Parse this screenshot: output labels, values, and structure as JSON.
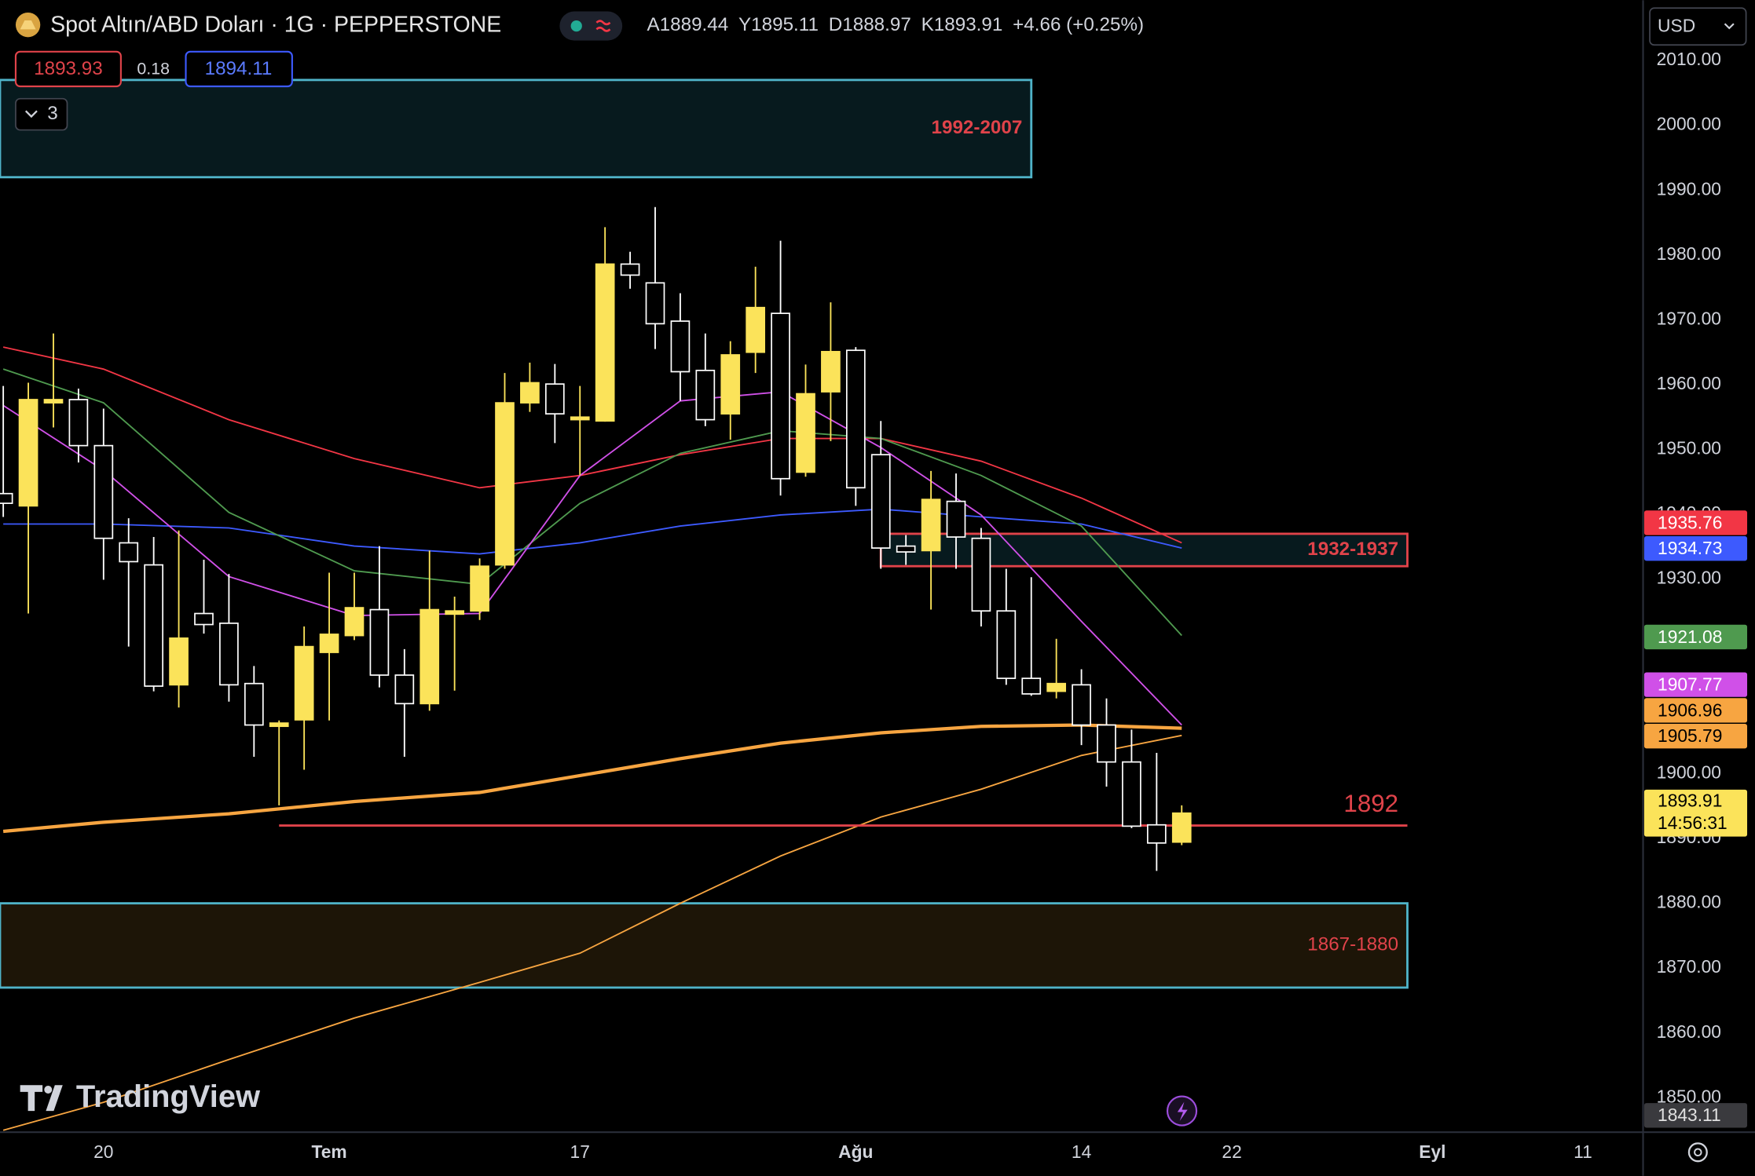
{
  "header": {
    "title": "Spot Altın/ABD Doları · 1G · PEPPERSTONE",
    "ohlc": [
      {
        "label": "A",
        "value": "1889.44"
      },
      {
        "label": "Y",
        "value": "1895.11"
      },
      {
        "label": "D",
        "value": "1888.97"
      },
      {
        "label": "K",
        "value": "1893.91"
      }
    ],
    "change": "+4.66 (+0.25%)",
    "sell": "1893.93",
    "spread": "0.18",
    "buy": "1894.11",
    "indicators_count": "3",
    "currency": "USD",
    "logo": "TradingView"
  },
  "chart_data": {
    "type": "candlestick",
    "x": [
      0,
      1,
      2,
      3,
      4,
      5,
      6,
      7,
      8,
      9,
      10,
      11,
      12,
      13,
      14,
      15,
      16,
      17,
      18,
      19,
      20,
      21,
      22,
      23,
      24,
      25,
      26,
      27,
      28,
      29,
      30,
      31,
      32,
      33,
      34,
      35,
      36,
      37,
      38,
      39,
      40,
      41,
      42,
      43,
      44,
      45,
      46,
      47
    ],
    "open": [
      1943.2,
      1941.3,
      1957.2,
      1957.7,
      1950.6,
      1935.6,
      1932.2,
      1913.7,
      1924.7,
      1923.2,
      1913.9,
      1907.3,
      1908.3,
      1918.7,
      1921.3,
      1925.3,
      1915.2,
      1910.8,
      1924.6,
      1925.1,
      1932.2,
      1957.2,
      1960.1,
      1954.6,
      1954.4,
      1978.6,
      1975.7,
      1969.8,
      1962.2,
      1955.5,
      1965.0,
      1971.0,
      1946.5,
      1958.9,
      1965.3,
      1949.2,
      1935.1,
      1934.4,
      1942.0,
      1936.3,
      1925.1,
      1914.7,
      1912.7,
      1913.7,
      1907.5,
      1901.8,
      1892.1,
      1889.44
    ],
    "high": [
      1959.8,
      1960.3,
      1967.9,
      1959.4,
      1956.3,
      1939.4,
      1936.5,
      1937.5,
      1933.0,
      1930.8,
      1916.6,
      1908.2,
      1922.7,
      1931.0,
      1931.0,
      1935.1,
      1919.2,
      1934.4,
      1927.3,
      1933.2,
      1961.8,
      1963.4,
      1963.2,
      1959.8,
      1984.3,
      1980.5,
      1987.4,
      1974.1,
      1967.9,
      1966.7,
      1978.2,
      1982.2,
      1963.1,
      1972.7,
      1965.8,
      1954.4,
      1936.8,
      1946.7,
      1946.3,
      1937.9,
      1931.6,
      1930.3,
      1920.8,
      1916.1,
      1911.6,
      1906.8,
      1903.2,
      1895.11
    ],
    "low": [
      1939.6,
      1924.7,
      1953.4,
      1948.0,
      1929.9,
      1919.6,
      1912.7,
      1910.2,
      1921.6,
      1911.1,
      1902.6,
      1895.1,
      1900.6,
      1908.2,
      1920.6,
      1913.3,
      1902.6,
      1909.7,
      1912.8,
      1923.7,
      1931.6,
      1955.8,
      1951.0,
      1946.0,
      1954.3,
      1974.8,
      1965.5,
      1957.5,
      1953.6,
      1951.5,
      1961.8,
      1942.9,
      1945.8,
      1951.3,
      1941.3,
      1931.6,
      1932.2,
      1925.3,
      1931.6,
      1922.7,
      1913.7,
      1912.0,
      1911.6,
      1904.4,
      1898.0,
      1891.6,
      1885.0,
      1888.97
    ],
    "close": [
      1941.7,
      1957.7,
      1957.7,
      1950.6,
      1936.3,
      1932.7,
      1913.5,
      1920.9,
      1923.0,
      1913.7,
      1907.5,
      1907.8,
      1919.6,
      1921.5,
      1925.6,
      1915.2,
      1910.8,
      1925.3,
      1925.1,
      1932.0,
      1957.2,
      1960.3,
      1955.5,
      1955.0,
      1978.6,
      1976.9,
      1969.4,
      1962.0,
      1954.6,
      1964.6,
      1971.9,
      1945.5,
      1958.6,
      1965.1,
      1944.1,
      1934.8,
      1934.2,
      1942.3,
      1936.5,
      1925.1,
      1914.7,
      1912.3,
      1913.9,
      1907.5,
      1901.8,
      1891.9,
      1889.3,
      1893.91
    ],
    "up_color": "#fbe35a",
    "down_color": "#ffffff",
    "overlays": [
      {
        "color": "#f23645",
        "width": 1.3,
        "x": [
          0,
          4,
          9,
          14,
          19,
          23,
          27,
          31,
          35,
          39,
          43,
          47
        ],
        "values": [
          1965.8,
          1962.4,
          1954.6,
          1948.6,
          1944.1,
          1946.0,
          1949.2,
          1951.7,
          1951.7,
          1948.2,
          1942.5,
          1935.6
        ]
      },
      {
        "color": "#3d5afe",
        "width": 1.3,
        "x": [
          0,
          4,
          9,
          14,
          19,
          23,
          27,
          31,
          35,
          39,
          43,
          47
        ],
        "values": [
          1938.5,
          1938.5,
          1937.9,
          1935.1,
          1933.9,
          1935.6,
          1938.2,
          1939.9,
          1940.8,
          1939.6,
          1938.5,
          1934.8
        ]
      },
      {
        "color": "#4f9a4f",
        "width": 1.3,
        "x": [
          0,
          4,
          9,
          14,
          19,
          23,
          27,
          31,
          35,
          39,
          43,
          47
        ],
        "values": [
          1962.4,
          1957.2,
          1940.3,
          1931.3,
          1929.2,
          1941.7,
          1949.4,
          1952.9,
          1951.7,
          1946.0,
          1938.2,
          1921.3
        ]
      },
      {
        "color": "#d050e8",
        "width": 1.3,
        "x": [
          0,
          4,
          9,
          14,
          19,
          23,
          27,
          31,
          35,
          39,
          43,
          47
        ],
        "values": [
          1956.8,
          1946.8,
          1930.4,
          1924.4,
          1924.7,
          1946.0,
          1957.5,
          1958.9,
          1950.3,
          1939.9,
          1923.5,
          1907.5
        ]
      },
      {
        "color": "#f7a541",
        "width": 3,
        "x": [
          0,
          4,
          9,
          14,
          19,
          23,
          27,
          31,
          35,
          39,
          43,
          47
        ],
        "values": [
          1891.1,
          1892.5,
          1893.8,
          1895.7,
          1897.1,
          1899.7,
          1902.3,
          1904.7,
          1906.3,
          1907.3,
          1907.5,
          1907.0
        ]
      },
      {
        "color": "#f7a541",
        "width": 1.3,
        "x": [
          0,
          4,
          9,
          14,
          19,
          23,
          27,
          31,
          35,
          39,
          43,
          47
        ],
        "values": [
          1845.0,
          1849.3,
          1855.9,
          1862.3,
          1867.8,
          1872.3,
          1880.0,
          1887.3,
          1893.3,
          1897.6,
          1902.8,
          1905.9
        ]
      }
    ],
    "zones": [
      {
        "label": "1992-2007",
        "low": 1992,
        "high": 2007,
        "x0": -0.13,
        "x1": 41,
        "border": "#4fb3c8",
        "fill": "#071a1e",
        "label_color": "#e0434a",
        "bold": true
      },
      {
        "label": "1932-1937",
        "low": 1932,
        "high": 1937,
        "x0": 35,
        "x1": 56,
        "border": "#e0434a",
        "fill": "#071a1e",
        "label_color": "#e0434a",
        "bold": true
      },
      {
        "label": "1867-1880",
        "low": 1867,
        "high": 1880,
        "x0": -0.13,
        "x1": 56,
        "border": "#4fb3c8",
        "fill": "#1d1507",
        "label_color": "#e0434a",
        "bold": false
      }
    ],
    "levels": [
      {
        "value": 1892,
        "x0": 11,
        "x1": 56,
        "color": "#e0434a"
      }
    ],
    "badges": [
      {
        "value": 1935.76,
        "color": "#f23645",
        "text_color": "#ffffff"
      },
      {
        "value": 1934.73,
        "color": "#3d5afe",
        "text_color": "#ffffff"
      },
      {
        "value": 1921.08,
        "color": "#4f9a4f",
        "text_color": "#ffffff"
      },
      {
        "value": 1907.77,
        "color": "#d050e8",
        "text_color": "#ffffff"
      },
      {
        "value": 1906.96,
        "color": "#f7a541",
        "text_color": "#000000"
      },
      {
        "value": 1905.79,
        "color": "#f7a541",
        "text_color": "#000000"
      },
      {
        "value": 1893.91,
        "color": "#fbe35a",
        "text_color": "#000000",
        "countdown": "14:56:31"
      },
      {
        "value": 1843.11,
        "color": "#3a3a3e",
        "text_color": "#e0e0e0"
      }
    ],
    "xlim": [
      -0.13,
      65.4
    ],
    "ylim": [
      1844.7,
      2019.3
    ],
    "xticks": [
      {
        "value": 4,
        "label": "20"
      },
      {
        "value": 13,
        "label": "Tem"
      },
      {
        "value": 23,
        "label": "17"
      },
      {
        "value": 34,
        "label": "Ağu"
      },
      {
        "value": 43,
        "label": "14"
      },
      {
        "value": 49,
        "label": "22"
      },
      {
        "value": 57,
        "label": "Eyl"
      },
      {
        "value": 63,
        "label": "11"
      }
    ],
    "yticks": [
      {
        "value": 1850,
        "label": "1850.00"
      },
      {
        "value": 1860,
        "label": "1860.00"
      },
      {
        "value": 1870,
        "label": "1870.00"
      },
      {
        "value": 1880,
        "label": "1880.00"
      },
      {
        "value": 1890,
        "label": "1890.00"
      },
      {
        "value": 1900,
        "label": "1900.00"
      },
      {
        "value": 1910,
        "label": "1910.00"
      },
      {
        "value": 1920,
        "label": "1920.00"
      },
      {
        "value": 1930,
        "label": "1930.00"
      },
      {
        "value": 1940,
        "label": "1940.00"
      },
      {
        "value": 1950,
        "label": "1950.00"
      },
      {
        "value": 1960,
        "label": "1960.00"
      },
      {
        "value": 1970,
        "label": "1970.00"
      },
      {
        "value": 1980,
        "label": "1980.00"
      },
      {
        "value": 1990,
        "label": "1990.00"
      },
      {
        "value": 2000,
        "label": "2000.00"
      },
      {
        "value": 2010,
        "label": "2010.00"
      }
    ],
    "grid": false
  }
}
